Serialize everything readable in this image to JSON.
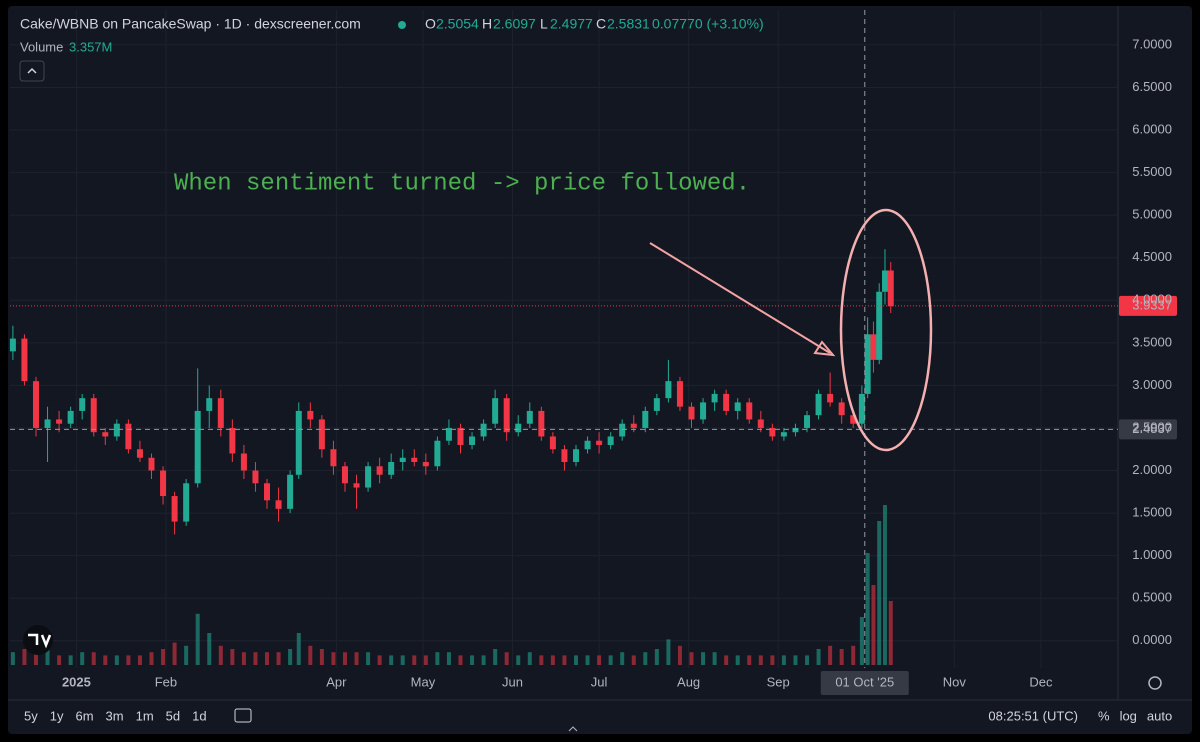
{
  "chart_data": {
    "type": "candlestick",
    "title": "Cake/WBNB on PancakeSwap · 1D · dexscreener.com",
    "ohlc_labels": [
      "O",
      "H",
      "L",
      "C"
    ],
    "ohlc_values": [
      "2.5054",
      "2.6097",
      "2.4977",
      "2.5831"
    ],
    "change": "0.07770 (+3.10%)",
    "volume_label": "Volume",
    "volume_value": "3.357M",
    "annotation": "When sentiment turned -> price followed.",
    "up_color": "#22ab94",
    "down_color": "#f23645",
    "xlim": [
      -23,
      360
    ],
    "xticks": [
      {
        "value": 0,
        "label": "2025"
      },
      {
        "value": 31,
        "label": "Feb"
      },
      {
        "value": 90,
        "label": "Apr"
      },
      {
        "value": 120,
        "label": "May"
      },
      {
        "value": 151,
        "label": "Jun"
      },
      {
        "value": 181,
        "label": "Jul"
      },
      {
        "value": 212,
        "label": "Aug"
      },
      {
        "value": 243,
        "label": "Sep"
      },
      {
        "value": 304,
        "label": "Nov"
      },
      {
        "value": 334,
        "label": "Dec"
      }
    ],
    "ylim": [
      -0.32,
      7.41
    ],
    "yticks": [
      {
        "value": 0,
        "label": "0.0000"
      },
      {
        "value": 0.5,
        "label": "0.5000"
      },
      {
        "value": 1,
        "label": "1.0000"
      },
      {
        "value": 1.5,
        "label": "1.5000"
      },
      {
        "value": 2,
        "label": "2.0000"
      },
      {
        "value": 2.5,
        "label": "2.5000"
      },
      {
        "value": 3,
        "label": "3.0000"
      },
      {
        "value": 3.5,
        "label": "3.5000"
      },
      {
        "value": 4,
        "label": "4.0000"
      },
      {
        "value": 4.5,
        "label": "4.5000"
      },
      {
        "value": 5,
        "label": "5.0000"
      },
      {
        "value": 5.5,
        "label": "5.5000"
      },
      {
        "value": 6,
        "label": "6.0000"
      },
      {
        "value": 6.5,
        "label": "6.5000"
      },
      {
        "value": 7,
        "label": "7.0000"
      }
    ],
    "last_price": {
      "value": 3.9337,
      "label": "3.9337"
    },
    "crosshair": {
      "x": 273,
      "x_label": "01 Oct '25",
      "price": {
        "value": 2.4837,
        "label": "2.4837"
      }
    },
    "candles": {
      "x": [
        -22,
        -18,
        -14,
        -10,
        -6,
        -2,
        2,
        6,
        10,
        14,
        18,
        22,
        26,
        30,
        34,
        38,
        42,
        46,
        50,
        54,
        58,
        62,
        66,
        70,
        74,
        77,
        81,
        85,
        89,
        93,
        97,
        101,
        105,
        109,
        113,
        117,
        121,
        125,
        129,
        133,
        137,
        141,
        145,
        149,
        153,
        157,
        161,
        165,
        169,
        173,
        177,
        181,
        185,
        189,
        193,
        197,
        201,
        205,
        209,
        213,
        217,
        221,
        225,
        229,
        233,
        237,
        241,
        245,
        249,
        253,
        257,
        261,
        265,
        269,
        272,
        274,
        276,
        278,
        280,
        282
      ],
      "open": [
        3.4,
        3.55,
        3.05,
        2.5,
        2.6,
        2.55,
        2.7,
        2.85,
        2.45,
        2.4,
        2.55,
        2.25,
        2.15,
        2.0,
        1.7,
        1.4,
        1.85,
        2.7,
        2.85,
        2.5,
        2.2,
        2.0,
        1.85,
        1.65,
        1.55,
        1.95,
        2.7,
        2.6,
        2.25,
        2.05,
        1.85,
        1.8,
        2.05,
        1.95,
        2.1,
        2.15,
        2.1,
        2.05,
        2.35,
        2.5,
        2.3,
        2.4,
        2.55,
        2.85,
        2.45,
        2.55,
        2.7,
        2.4,
        2.25,
        2.1,
        2.25,
        2.35,
        2.3,
        2.4,
        2.55,
        2.5,
        2.7,
        2.85,
        3.05,
        2.75,
        2.6,
        2.8,
        2.9,
        2.7,
        2.8,
        2.6,
        2.5,
        2.4,
        2.45,
        2.5,
        2.65,
        2.9,
        2.8,
        2.65,
        2.55,
        2.9,
        3.6,
        3.3,
        4.1,
        4.35
      ],
      "high": [
        3.7,
        3.6,
        3.1,
        2.75,
        2.7,
        2.75,
        2.9,
        2.9,
        2.5,
        2.6,
        2.6,
        2.35,
        2.2,
        2.05,
        1.75,
        1.9,
        3.2,
        3.0,
        2.95,
        2.6,
        2.3,
        2.1,
        1.9,
        1.8,
        2.0,
        2.8,
        2.8,
        2.65,
        2.35,
        2.1,
        1.95,
        2.1,
        2.15,
        2.2,
        2.25,
        2.25,
        2.2,
        2.4,
        2.6,
        2.55,
        2.45,
        2.6,
        2.95,
        2.9,
        2.65,
        2.8,
        2.75,
        2.45,
        2.3,
        2.3,
        2.4,
        2.45,
        2.45,
        2.6,
        2.65,
        2.75,
        2.9,
        3.3,
        3.1,
        2.8,
        2.85,
        2.95,
        2.95,
        2.85,
        2.85,
        2.7,
        2.55,
        2.5,
        2.55,
        2.7,
        2.95,
        3.15,
        2.85,
        2.7,
        3.0,
        3.8,
        3.75,
        4.2,
        4.6,
        4.45
      ],
      "low": [
        3.3,
        3.0,
        2.4,
        2.1,
        2.45,
        2.5,
        2.6,
        2.4,
        2.3,
        2.35,
        2.2,
        2.1,
        1.9,
        1.6,
        1.25,
        1.35,
        1.8,
        2.5,
        2.4,
        2.1,
        1.9,
        1.75,
        1.55,
        1.4,
        1.5,
        1.9,
        2.5,
        2.15,
        1.95,
        1.75,
        1.55,
        1.75,
        1.85,
        1.9,
        2.0,
        2.05,
        1.95,
        2.0,
        2.3,
        2.2,
        2.25,
        2.35,
        2.5,
        2.35,
        2.4,
        2.5,
        2.35,
        2.2,
        2.0,
        2.05,
        2.2,
        2.2,
        2.25,
        2.35,
        2.45,
        2.45,
        2.65,
        2.8,
        2.7,
        2.5,
        2.55,
        2.7,
        2.65,
        2.6,
        2.55,
        2.45,
        2.35,
        2.35,
        2.4,
        2.45,
        2.6,
        2.75,
        2.55,
        2.5,
        2.5,
        2.85,
        3.15,
        3.25,
        3.95,
        3.85
      ],
      "close": [
        3.55,
        3.05,
        2.5,
        2.6,
        2.55,
        2.7,
        2.85,
        2.45,
        2.4,
        2.55,
        2.25,
        2.15,
        2.0,
        1.7,
        1.4,
        1.85,
        2.7,
        2.85,
        2.5,
        2.2,
        2.0,
        1.85,
        1.65,
        1.55,
        1.95,
        2.7,
        2.6,
        2.25,
        2.05,
        1.85,
        1.8,
        2.05,
        1.95,
        2.1,
        2.15,
        2.1,
        2.05,
        2.35,
        2.5,
        2.3,
        2.4,
        2.55,
        2.85,
        2.45,
        2.55,
        2.7,
        2.4,
        2.25,
        2.1,
        2.25,
        2.35,
        2.3,
        2.4,
        2.55,
        2.5,
        2.7,
        2.85,
        3.05,
        2.75,
        2.6,
        2.8,
        2.9,
        2.7,
        2.8,
        2.6,
        2.5,
        2.4,
        2.45,
        2.5,
        2.65,
        2.9,
        2.8,
        2.65,
        2.55,
        2.9,
        3.6,
        3.3,
        4.1,
        4.35,
        3.93
      ],
      "volume": [
        0.4,
        0.5,
        0.6,
        0.5,
        0.3,
        0.3,
        0.4,
        0.4,
        0.3,
        0.3,
        0.3,
        0.3,
        0.4,
        0.5,
        0.7,
        0.6,
        1.6,
        1.0,
        0.6,
        0.5,
        0.4,
        0.4,
        0.4,
        0.4,
        0.5,
        1.0,
        0.6,
        0.5,
        0.4,
        0.4,
        0.4,
        0.4,
        0.3,
        0.3,
        0.3,
        0.3,
        0.3,
        0.4,
        0.4,
        0.3,
        0.3,
        0.3,
        0.5,
        0.4,
        0.3,
        0.4,
        0.3,
        0.3,
        0.3,
        0.3,
        0.3,
        0.3,
        0.3,
        0.4,
        0.3,
        0.4,
        0.5,
        0.8,
        0.6,
        0.4,
        0.4,
        0.4,
        0.3,
        0.3,
        0.3,
        0.3,
        0.3,
        0.3,
        0.3,
        0.3,
        0.5,
        0.6,
        0.5,
        0.6,
        1.5,
        3.5,
        2.5,
        4.5,
        5.0,
        2.0
      ]
    },
    "toolbar": {
      "ranges": [
        "5y",
        "1y",
        "6m",
        "3m",
        "1m",
        "5d",
        "1d"
      ],
      "time": "08:25:51 (UTC)",
      "options": [
        "%",
        "log",
        "auto"
      ]
    }
  }
}
